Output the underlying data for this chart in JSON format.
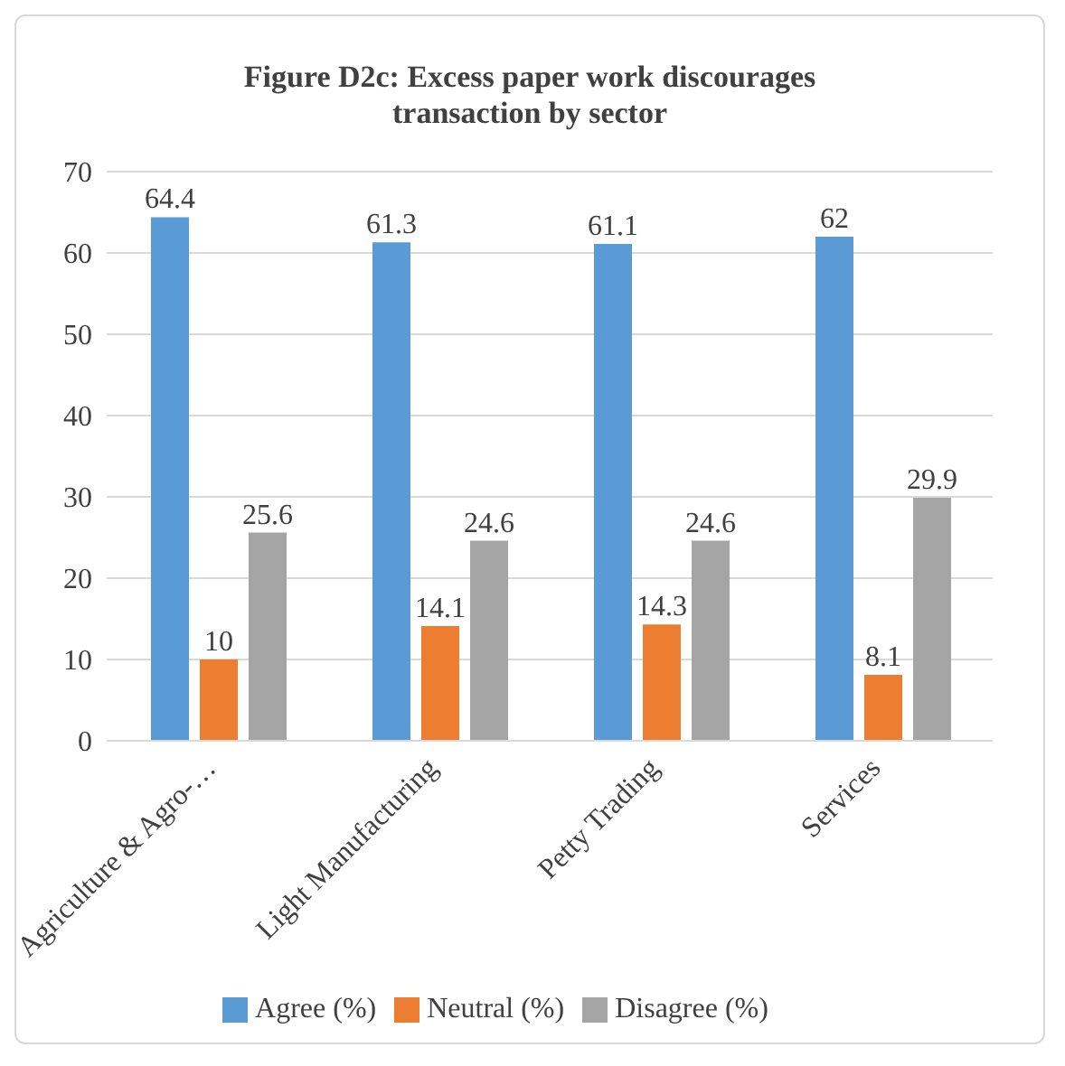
{
  "chart_data": {
    "type": "bar",
    "title": "Figure D2c: Excess paper work discourages transaction by sector",
    "categories": [
      "Agriculture & Agro-…",
      "Light Manufacturing",
      "Petty Trading",
      "Services"
    ],
    "series": [
      {
        "name": "Agree (%)",
        "color": "#5b9bd5",
        "values": [
          64.4,
          61.3,
          61.1,
          62
        ]
      },
      {
        "name": "Neutral (%)",
        "color": "#ed7d31",
        "values": [
          10,
          14.1,
          14.3,
          8.1
        ]
      },
      {
        "name": "Disagree (%)",
        "color": "#a5a5a5",
        "values": [
          25.6,
          24.6,
          24.6,
          29.9
        ]
      }
    ],
    "ylim": [
      0,
      70
    ],
    "yticks": [
      0,
      10,
      20,
      30,
      40,
      50,
      60,
      70
    ],
    "grid": "y",
    "legend": "bottom",
    "data_labels": true
  }
}
